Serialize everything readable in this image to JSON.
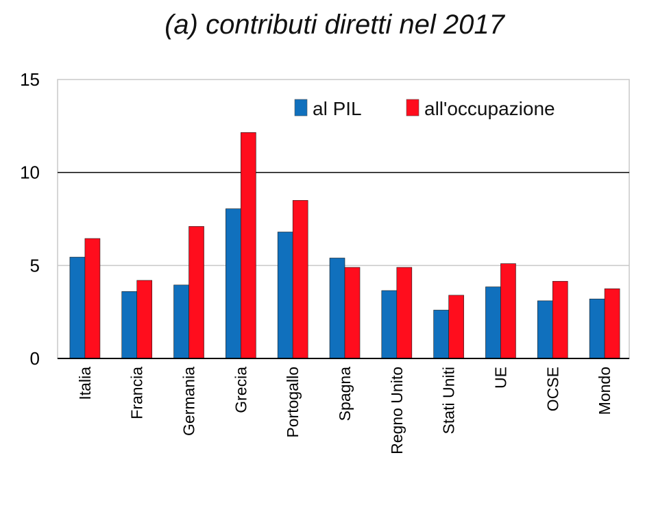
{
  "chart_data": {
    "type": "bar",
    "title": "(a) contributi diretti nel 2017",
    "xlabel": "",
    "ylabel": "",
    "ylim": [
      0,
      15
    ],
    "yticks": [
      "0",
      "5",
      "10",
      "15"
    ],
    "grid": true,
    "legend_position": "top-right",
    "categories": [
      "Italia",
      "Francia",
      "Germania",
      "Grecia",
      "Portogallo",
      "Spagna",
      "Regno Unito",
      "Stati Uniti",
      "UE",
      "OCSE",
      "Mondo"
    ],
    "series": [
      {
        "name": "al PIL",
        "color": "#1070BD",
        "values": [
          5.45,
          3.6,
          3.95,
          8.05,
          6.8,
          5.4,
          3.65,
          2.6,
          3.85,
          3.1,
          3.2
        ]
      },
      {
        "name": "all'occupazione",
        "color": "#FF0D1D",
        "values": [
          6.45,
          4.2,
          7.1,
          12.15,
          8.5,
          4.9,
          4.9,
          3.4,
          5.1,
          4.15,
          3.75
        ]
      }
    ]
  }
}
